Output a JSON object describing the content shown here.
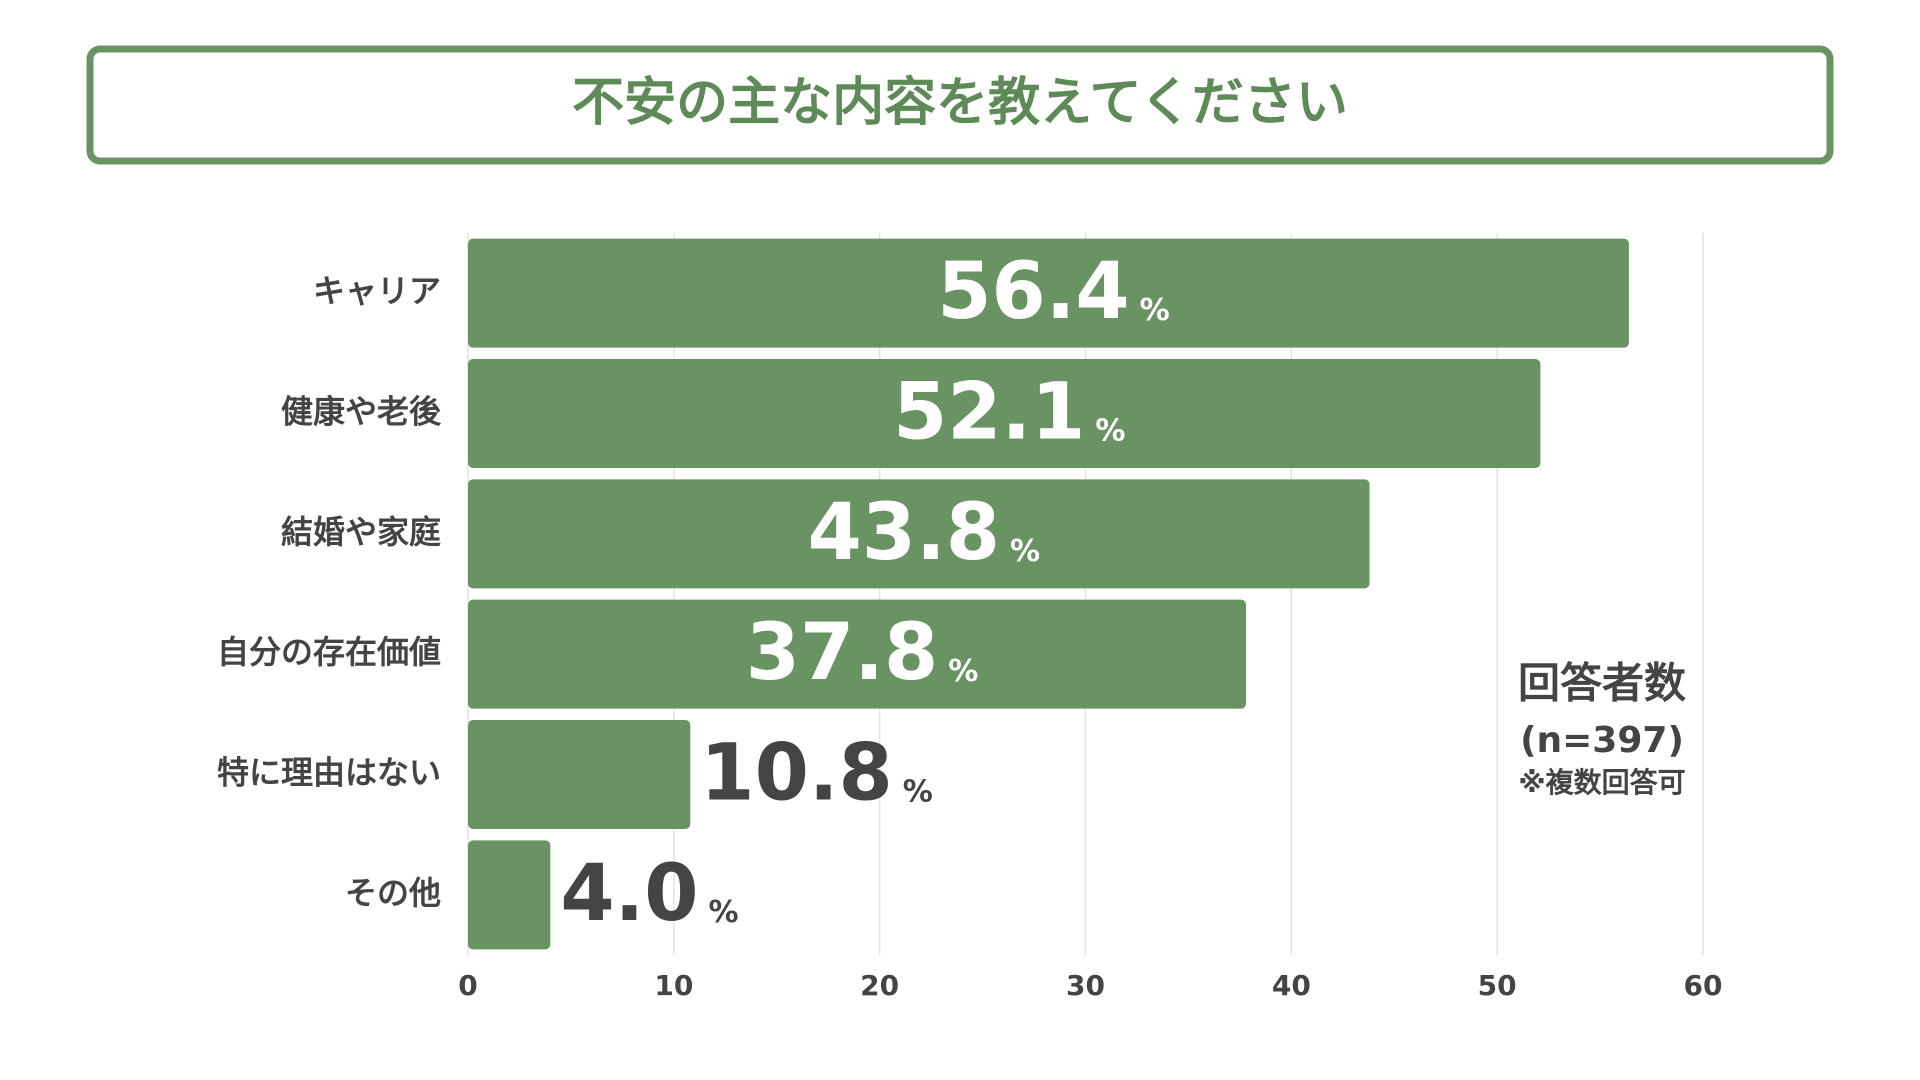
{
  "chart_data": {
    "type": "barh",
    "title": "不安の主な内容を教えてください",
    "categories": [
      "キャリア",
      "健康や老後",
      "結婚や家庭",
      "自分の存在価値",
      "特に理由はない",
      "その他"
    ],
    "values": [
      56.4,
      52.1,
      43.8,
      37.8,
      10.8,
      4.0
    ],
    "value_labels": [
      "56.4",
      "52.1",
      "43.8",
      "37.8",
      "10.8",
      "4.0"
    ],
    "value_suffix": "%",
    "color": "#6a9364",
    "xlim": [
      0,
      60
    ],
    "xticks": [
      0,
      10,
      20,
      30,
      40,
      50,
      60
    ],
    "grid": true,
    "annotations": [
      "回答者数",
      "(n=397)",
      "※複数回答可"
    ]
  }
}
